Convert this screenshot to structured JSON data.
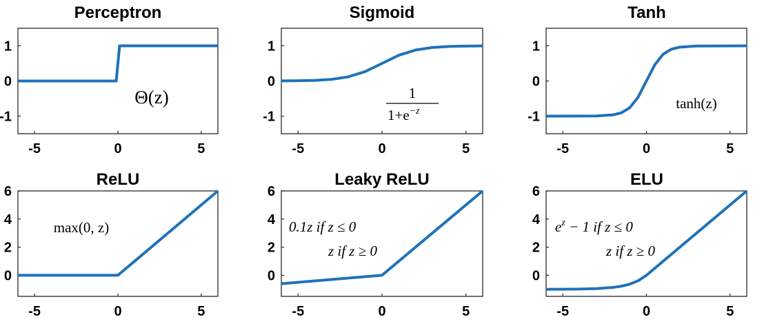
{
  "chart_data": [
    {
      "type": "line",
      "title": "Perceptron",
      "formula": "Θ(z)",
      "xlim": [
        -6,
        6
      ],
      "ylim": [
        -1.5,
        1.5
      ],
      "xticks": [
        -5,
        0,
        5
      ],
      "yticks": [
        -1,
        0,
        1
      ],
      "series": [
        {
          "color": "#1f72b8",
          "x": [
            -6,
            -0.1,
            0.1,
            6
          ],
          "y": [
            0,
            0,
            1,
            1
          ]
        }
      ]
    },
    {
      "type": "line",
      "title": "Sigmoid",
      "formula": {
        "numerator": "1",
        "denominator": "1+e",
        "exponent": "−z"
      },
      "xlim": [
        -6,
        6
      ],
      "ylim": [
        -1.5,
        1.5
      ],
      "xticks": [
        -5,
        0,
        5
      ],
      "yticks": [
        -1,
        0,
        1
      ],
      "series": [
        {
          "color": "#1f72b8",
          "x": [
            -6,
            -5,
            -4,
            -3,
            -2,
            -1,
            0,
            1,
            2,
            3,
            4,
            5,
            6
          ],
          "y": [
            0.002,
            0.007,
            0.018,
            0.047,
            0.119,
            0.269,
            0.5,
            0.731,
            0.881,
            0.953,
            0.982,
            0.993,
            0.998
          ]
        }
      ]
    },
    {
      "type": "line",
      "title": "Tanh",
      "formula": "tanh(z)",
      "xlim": [
        -6,
        6
      ],
      "ylim": [
        -1.5,
        1.5
      ],
      "xticks": [
        -5,
        0,
        5
      ],
      "yticks": [
        -1,
        0,
        1
      ],
      "series": [
        {
          "color": "#1f72b8",
          "x": [
            -6,
            -3,
            -2,
            -1.5,
            -1,
            -0.5,
            0,
            0.5,
            1,
            1.5,
            2,
            3,
            6
          ],
          "y": [
            -1,
            -0.995,
            -0.964,
            -0.905,
            -0.762,
            -0.462,
            0,
            0.462,
            0.762,
            0.905,
            0.964,
            0.995,
            1
          ]
        }
      ]
    },
    {
      "type": "line",
      "title": "ReLU",
      "formula": "max(0, z)",
      "xlim": [
        -6,
        6
      ],
      "ylim": [
        -1.5,
        6
      ],
      "xticks": [
        -5,
        0,
        5
      ],
      "yticks": [
        0,
        2,
        4,
        6
      ],
      "series": [
        {
          "color": "#1f72b8",
          "x": [
            -6,
            0,
            6
          ],
          "y": [
            0,
            0,
            6
          ]
        }
      ]
    },
    {
      "type": "line",
      "title": "Leaky ReLU",
      "formula": [
        "0.1z if z ≤ 0",
        "z if z ≥ 0"
      ],
      "xlim": [
        -6,
        6
      ],
      "ylim": [
        -1.5,
        6
      ],
      "xticks": [
        -5,
        0,
        5
      ],
      "yticks": [
        0,
        2,
        4,
        6
      ],
      "series": [
        {
          "color": "#1f72b8",
          "x": [
            -6,
            0,
            6
          ],
          "y": [
            -0.6,
            0,
            6
          ]
        }
      ]
    },
    {
      "type": "line",
      "title": "ELU",
      "formula": {
        "line1_base": "e",
        "line1_exponent": "z",
        "line1_rest": " − 1 if z ≤ 0",
        "line2": "z if z ≥ 0"
      },
      "xlim": [
        -6,
        6
      ],
      "ylim": [
        -1.5,
        6
      ],
      "xticks": [
        -5,
        0,
        5
      ],
      "yticks": [
        0,
        2,
        4,
        6
      ],
      "series": [
        {
          "color": "#1f72b8",
          "x": [
            -6,
            -5,
            -4,
            -3,
            -2,
            -1.5,
            -1,
            -0.5,
            0,
            6
          ],
          "y": [
            -0.998,
            -0.993,
            -0.982,
            -0.95,
            -0.865,
            -0.777,
            -0.632,
            -0.393,
            0,
            6
          ]
        }
      ]
    }
  ]
}
